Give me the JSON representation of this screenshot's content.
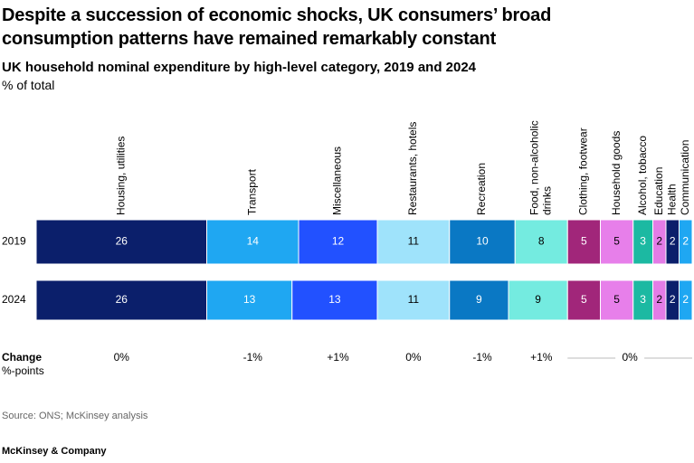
{
  "chart_data": {
    "type": "stacked-bar",
    "title": "Despite a succession of economic shocks, UK consumers’ broad consumption patterns have remained remarkably constant",
    "subtitle": "UK household nominal expenditure by high-level category, 2019 and 2024",
    "unit": "% of total",
    "categories": [
      "2019",
      "2024"
    ],
    "xlim": [
      0,
      100
    ],
    "series": [
      {
        "name": "Housing, utilities",
        "color": "#0b1f6b",
        "values": [
          26,
          26
        ]
      },
      {
        "name": "Transport",
        "color": "#1fa7f2",
        "values": [
          14,
          13
        ]
      },
      {
        "name": "Miscellaneous",
        "color": "#2251ff",
        "values": [
          12,
          13
        ]
      },
      {
        "name": "Restaurants, hotels",
        "color": "#9fe3fb",
        "values": [
          11,
          11
        ]
      },
      {
        "name": "Recreation",
        "color": "#0a78c4",
        "values": [
          10,
          9
        ]
      },
      {
        "name": "Food, non-alcoholic drinks",
        "color": "#74ebe0",
        "values": [
          8,
          9
        ]
      },
      {
        "name": "Clothing, footwear",
        "color": "#a1267a",
        "values": [
          5,
          5
        ]
      },
      {
        "name": "Household goods",
        "color": "#e77fea",
        "values": [
          5,
          5
        ]
      },
      {
        "name": "Alcohol, tobacco",
        "color": "#1cb9a2",
        "values": [
          3,
          3
        ]
      },
      {
        "name": "Education",
        "color": "#e37ce6",
        "values": [
          2,
          2
        ]
      },
      {
        "name": "Health",
        "color": "#0b1f6b",
        "values": [
          2,
          2
        ]
      },
      {
        "name": "Communication",
        "color": "#1fa7f2",
        "values": [
          2,
          2
        ]
      }
    ],
    "change": {
      "label": "Change",
      "unit": "%-points",
      "values": [
        "0%",
        "-1%",
        "+1%",
        "0%",
        "-1%",
        "+1%",
        "0%"
      ]
    },
    "source": "Source: ONS; McKinsey analysis",
    "footer": "McKinsey & Company"
  }
}
